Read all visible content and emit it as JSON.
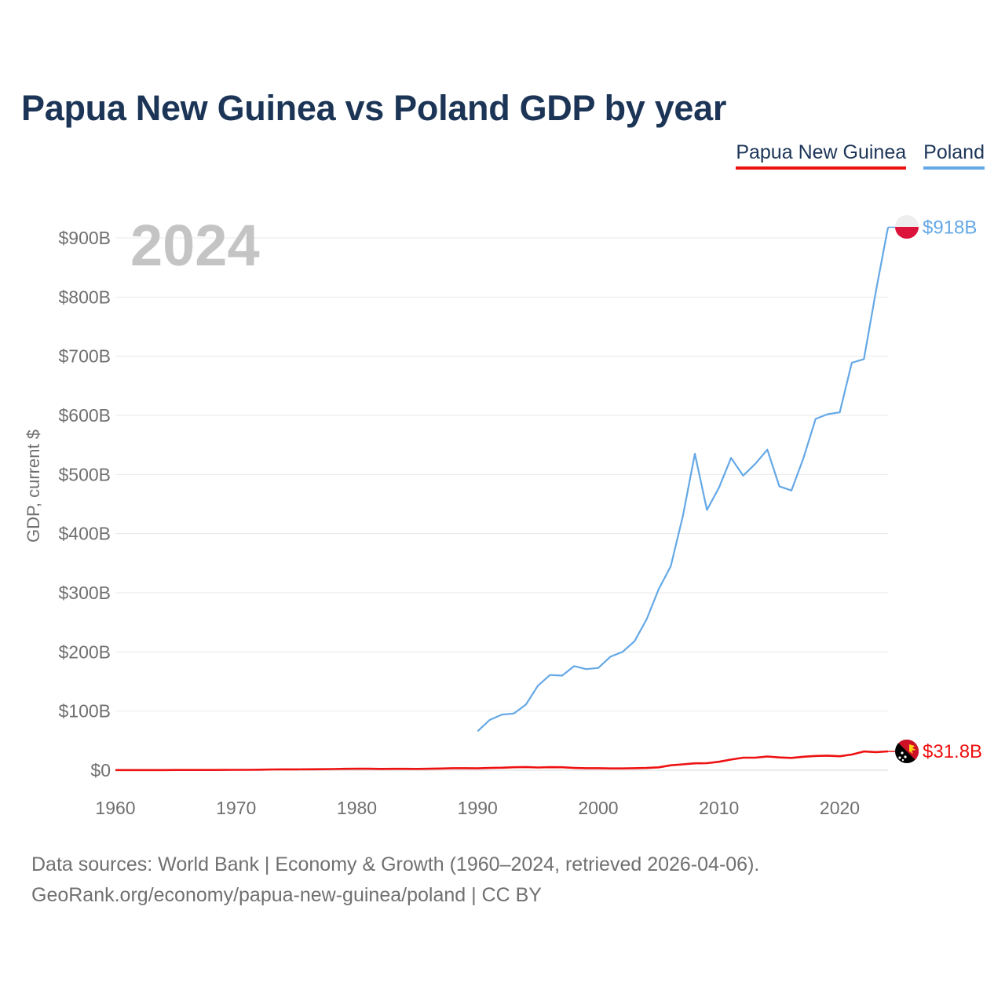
{
  "title": "Papua New Guinea vs Poland GDP by year",
  "legend": [
    {
      "label": "Papua New Guinea",
      "color": "#ee1111"
    },
    {
      "label": "Poland",
      "color": "#64a8e6"
    }
  ],
  "year_label": "2024",
  "footer": {
    "line1": "Data sources: World Bank | Economy & Growth (1960–2024, retrieved 2026-04-06).",
    "line2": "GeoRank.org/economy/papua-new-guinea/poland | CC BY"
  },
  "chart_data": {
    "type": "line",
    "title": "Papua New Guinea vs Poland GDP by year",
    "xlabel": "",
    "ylabel": "GDP, current $",
    "xlim": [
      1960,
      2024
    ],
    "ylim": [
      0,
      900
    ],
    "x_ticks": [
      1960,
      1970,
      1980,
      1990,
      2000,
      2010,
      2020
    ],
    "y_ticks": [
      0,
      100,
      200,
      300,
      400,
      500,
      600,
      700,
      800,
      900
    ],
    "y_tick_labels": [
      "$0",
      "$100B",
      "$200B",
      "$300B",
      "$400B",
      "$500B",
      "$600B",
      "$700B",
      "$800B",
      "$900B"
    ],
    "grid": true,
    "series": [
      {
        "name": "Poland",
        "color": "#64a8e6",
        "end_label": "$918B",
        "x": [
          1990,
          1991,
          1992,
          1993,
          1994,
          1995,
          1996,
          1997,
          1998,
          1999,
          2000,
          2001,
          2002,
          2003,
          2004,
          2005,
          2006,
          2007,
          2008,
          2009,
          2010,
          2011,
          2012,
          2013,
          2014,
          2015,
          2016,
          2017,
          2018,
          2019,
          2020,
          2021,
          2022,
          2023,
          2024
        ],
        "y": [
          66,
          85,
          94,
          96,
          111,
          143,
          161,
          160,
          176,
          171,
          173,
          192,
          200,
          218,
          255,
          306,
          345,
          429,
          535,
          440,
          478,
          528,
          498,
          518,
          542,
          480,
          473,
          528,
          594,
          602,
          605,
          689,
          695,
          810,
          918
        ]
      },
      {
        "name": "Papua New Guinea",
        "color": "#ee1111",
        "end_label": "$31.8B",
        "x": [
          1960,
          1961,
          1962,
          1963,
          1964,
          1965,
          1966,
          1967,
          1968,
          1969,
          1970,
          1971,
          1972,
          1973,
          1974,
          1975,
          1976,
          1977,
          1978,
          1979,
          1980,
          1981,
          1982,
          1983,
          1984,
          1985,
          1986,
          1987,
          1988,
          1989,
          1990,
          1991,
          1992,
          1993,
          1994,
          1995,
          1996,
          1997,
          1998,
          1999,
          2000,
          2001,
          2002,
          2003,
          2004,
          2005,
          2006,
          2007,
          2008,
          2009,
          2010,
          2011,
          2012,
          2013,
          2014,
          2015,
          2016,
          2017,
          2018,
          2019,
          2020,
          2021,
          2022,
          2023,
          2024
        ],
        "y": [
          0.23,
          0.24,
          0.25,
          0.27,
          0.3,
          0.34,
          0.38,
          0.42,
          0.45,
          0.5,
          0.65,
          0.72,
          0.98,
          1.3,
          1.4,
          1.4,
          1.6,
          1.7,
          2.0,
          2.4,
          2.5,
          2.5,
          2.3,
          2.4,
          2.4,
          2.3,
          2.5,
          2.9,
          3.5,
          3.5,
          3.2,
          3.8,
          4.2,
          5.0,
          5.5,
          4.6,
          5.2,
          5.0,
          3.8,
          3.5,
          3.5,
          3.1,
          3.0,
          3.5,
          3.9,
          4.9,
          8.4,
          9.9,
          11.7,
          12.0,
          14.3,
          18.0,
          21.3,
          21.3,
          23.2,
          21.7,
          20.8,
          22.8,
          24.1,
          24.7,
          23.6,
          26.6,
          31.7,
          30.7,
          31.8
        ]
      }
    ]
  }
}
